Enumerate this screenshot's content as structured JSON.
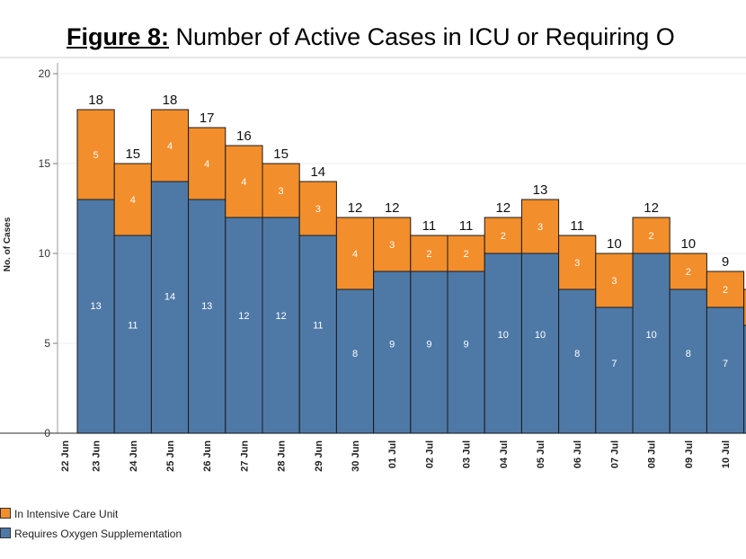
{
  "title": {
    "prefix": "Figure 8:",
    "text": "Number of Active Cases in ICU or Requiring O"
  },
  "colors": {
    "icu": "#f28e2b",
    "oxygen": "#4e79a7"
  },
  "legend": {
    "icu": "In Intensive Care Unit",
    "oxygen": "Requires Oxygen Supplementation"
  },
  "chart_data": {
    "type": "bar",
    "stacked": true,
    "ylabel": "No. of Cases",
    "xlabel": "",
    "ylim": [
      0,
      20
    ],
    "yticks": [
      0,
      5,
      10,
      15,
      20
    ],
    "grid": true,
    "categories": [
      "22 Jun",
      "23 Jun",
      "24 Jun",
      "25 Jun",
      "26 Jun",
      "27 Jun",
      "28 Jun",
      "29 Jun",
      "30 Jun",
      "01 Jul",
      "02 Jul",
      "03 Jul",
      "04 Jul",
      "05 Jul",
      "06 Jul",
      "07 Jul",
      "08 Jul",
      "09 Jul",
      "10 Jul"
    ],
    "series": [
      {
        "name": "Requires Oxygen Supplementation",
        "values": [
          null,
          13,
          11,
          14,
          13,
          12,
          12,
          11,
          8,
          9,
          9,
          9,
          10,
          10,
          8,
          7,
          10,
          8,
          7
        ]
      },
      {
        "name": "In Intensive Care Unit",
        "values": [
          null,
          5,
          4,
          4,
          4,
          4,
          3,
          3,
          4,
          3,
          2,
          2,
          2,
          3,
          3,
          3,
          2,
          2,
          2
        ]
      }
    ],
    "totals": [
      null,
      18,
      15,
      18,
      17,
      16,
      15,
      14,
      12,
      12,
      11,
      11,
      12,
      13,
      11,
      10,
      12,
      10,
      9
    ],
    "partial_bar": {
      "oxygen": 6,
      "total": 8
    }
  }
}
